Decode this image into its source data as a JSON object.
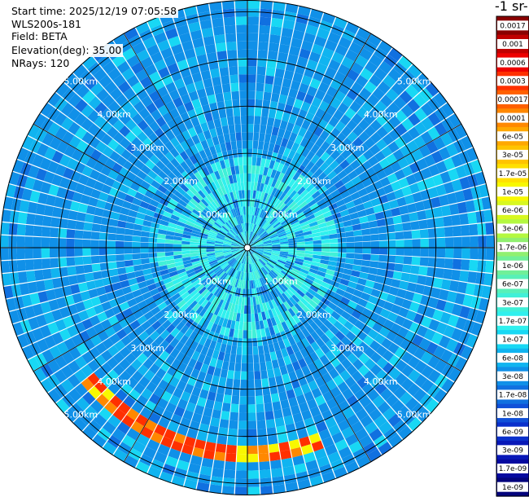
{
  "header": {
    "start_time": "Start time: 2025/12/19 07:05:58",
    "instrument": "WLS200s-181",
    "field": "Field: BETA",
    "elevation": "Elevation(deg): 35.00",
    "nrays": "NRays: 120"
  },
  "chart_data": {
    "type": "heatmap",
    "subtype": "ppi-polar",
    "nrays": 120,
    "max_range_km": 5.25,
    "range_rings_km": [
      1,
      2,
      3,
      4,
      5
    ],
    "ring_labels": [
      "1.00km",
      "2.00km",
      "3.00km",
      "4.00km",
      "5.00km"
    ],
    "spokes_deg": [
      0,
      30,
      60,
      90,
      120,
      150
    ],
    "colorbar": {
      "unit_label": "-1 sr-",
      "scale": "log",
      "ticks": [
        "0.0017",
        "0.001",
        "0.0006",
        "0.0003",
        "0.00017",
        "0.0001",
        "6e-05",
        "3e-05",
        "1.7e-05",
        "1e-05",
        "6e-06",
        "3e-06",
        "1.7e-06",
        "1e-06",
        "6e-07",
        "3e-07",
        "1.7e-07",
        "1e-07",
        "6e-08",
        "3e-08",
        "1.7e-08",
        "1e-08",
        "6e-09",
        "3e-09",
        "1.7e-09",
        "1e-09"
      ],
      "colors": [
        "#8a0000",
        "#c00000",
        "#ee0000",
        "#ff3000",
        "#ff6000",
        "#ff8800",
        "#ffa800",
        "#ffc400",
        "#ffe000",
        "#f8f800",
        "#d8f820",
        "#b4f840",
        "#90f070",
        "#70f098",
        "#58f0b8",
        "#40f0d8",
        "#30f0ee",
        "#18d8f4",
        "#10b4f0",
        "#1090e8",
        "#1070e0",
        "#1050d8",
        "#0a30cc",
        "#0818b8",
        "#060aa0",
        "#04047c"
      ]
    },
    "field_summary": {
      "background_level": "3e-08",
      "inner_patch_level": "1.7e-07",
      "strong_band": {
        "azimuth_deg": [
          160,
          230
        ],
        "range_km": [
          4.15,
          4.55
        ],
        "level": "0.0003"
      }
    }
  }
}
